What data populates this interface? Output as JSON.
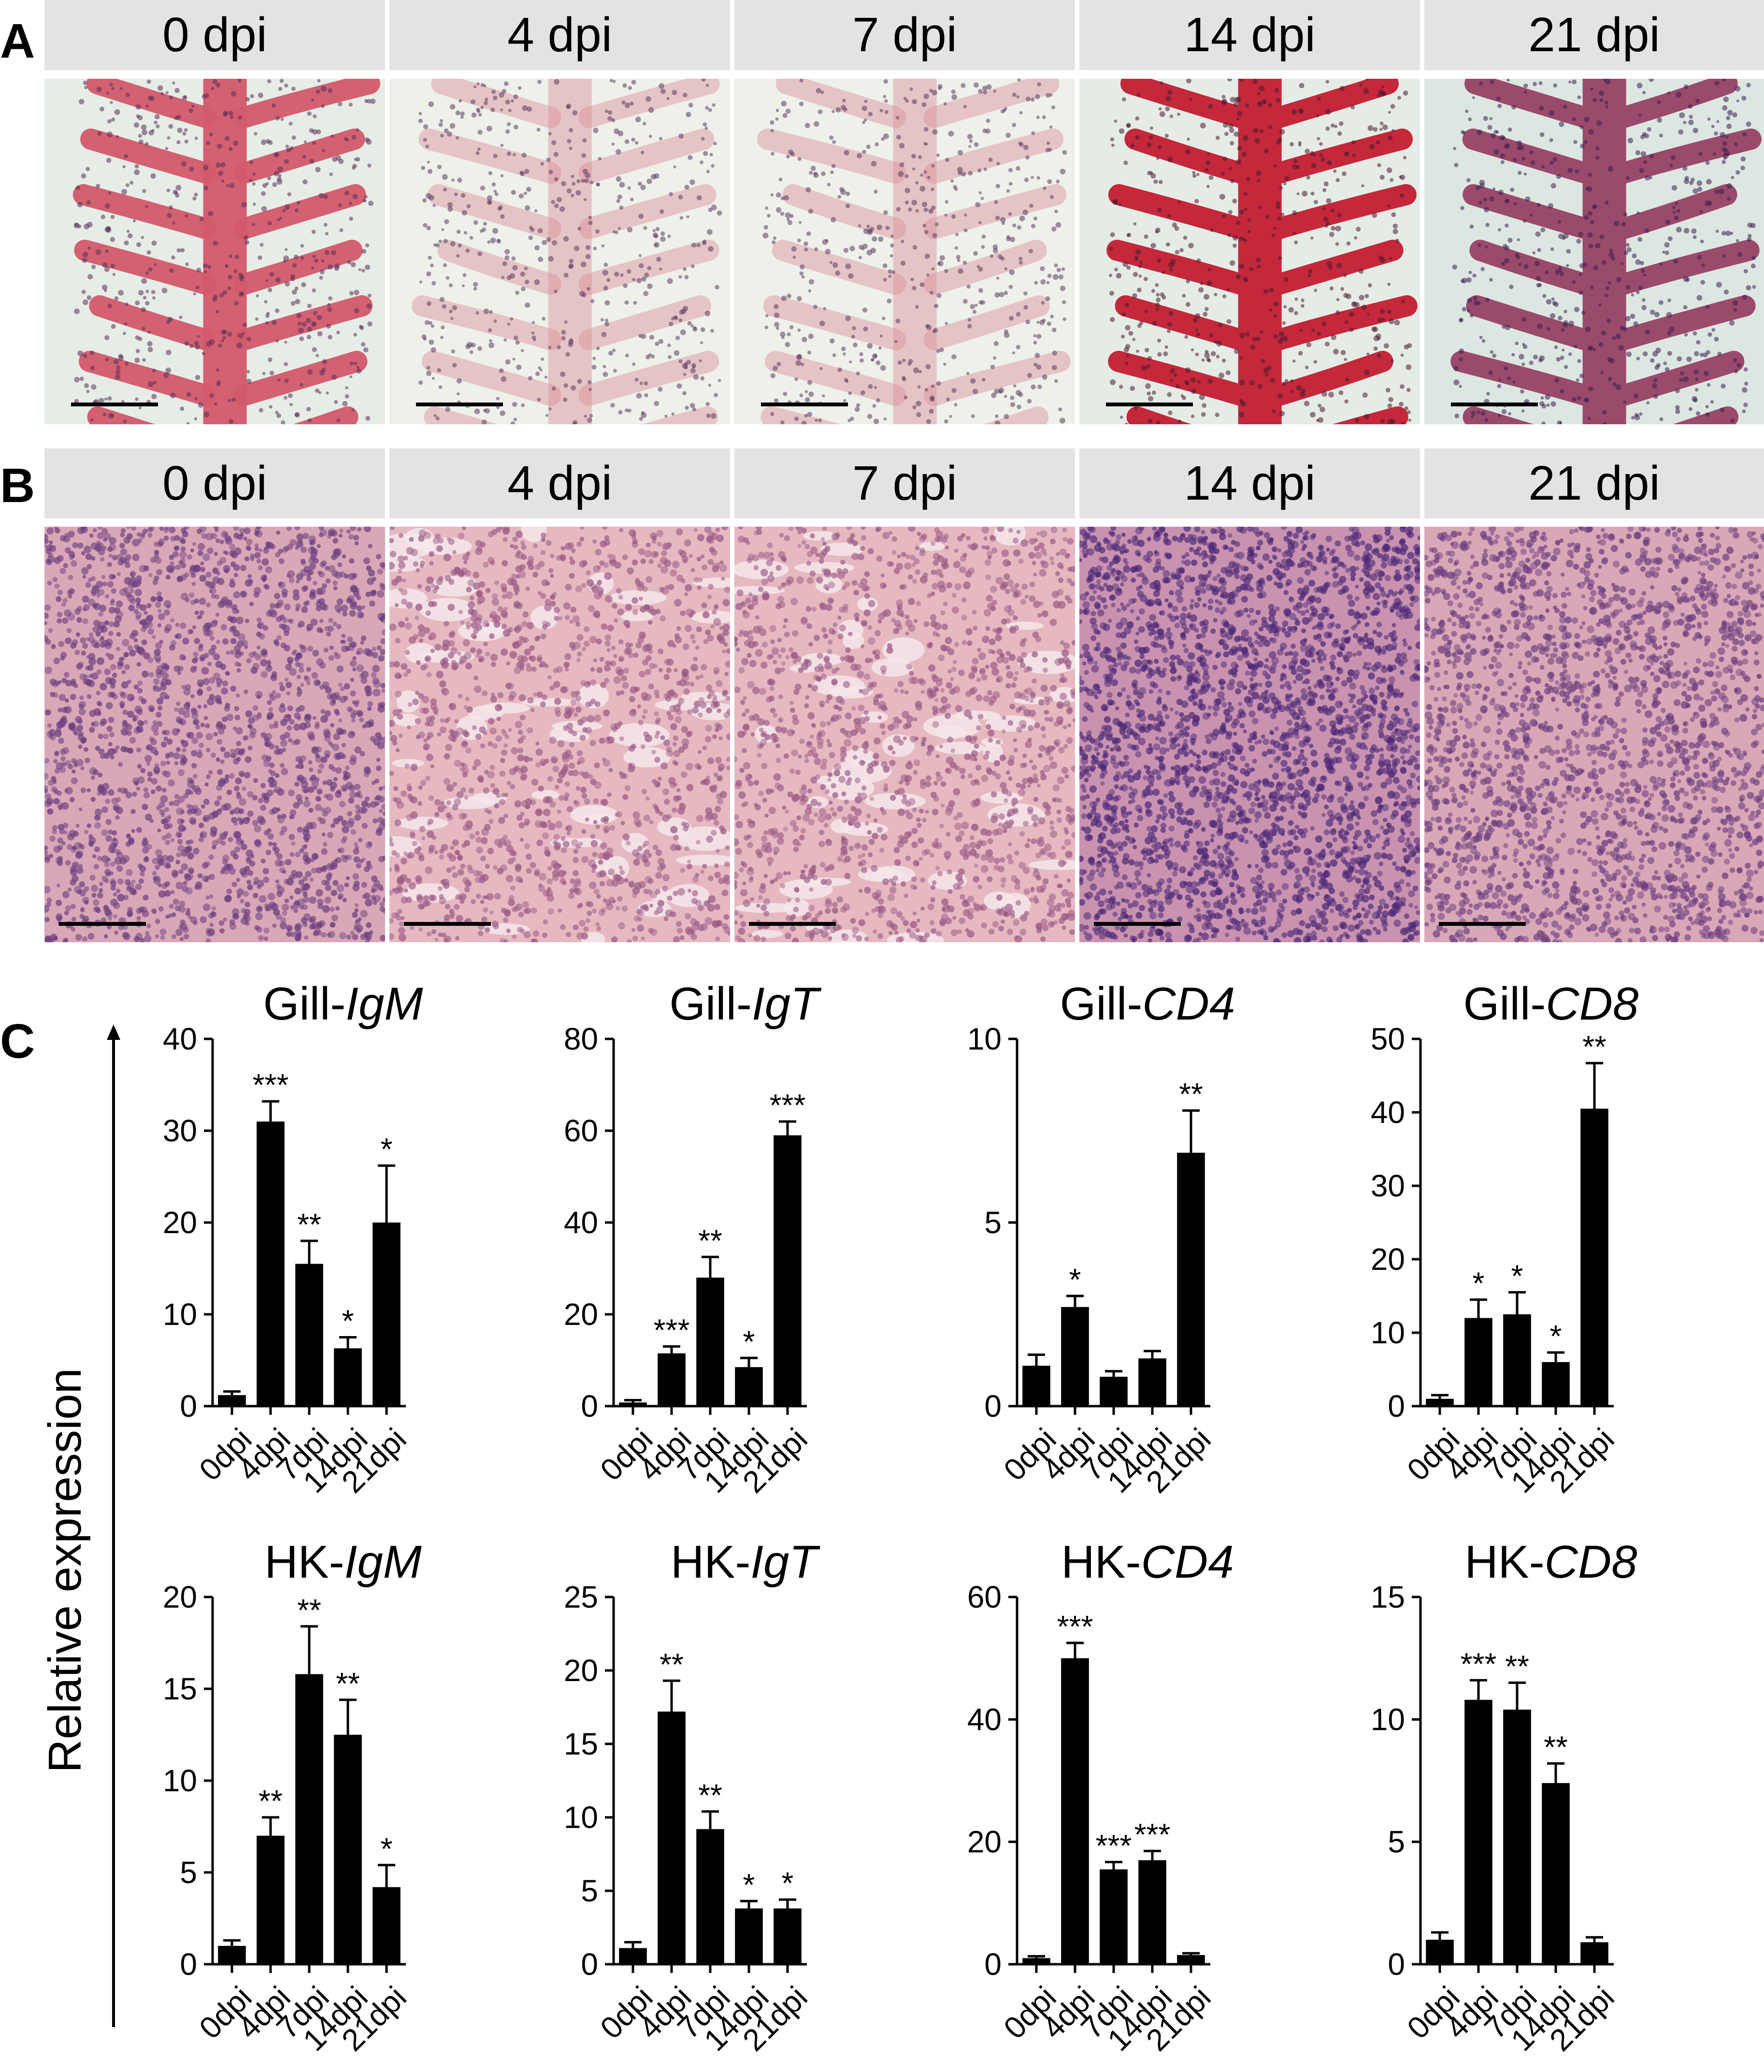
{
  "panels": {
    "a_label": "A",
    "b_label": "B",
    "c_label": "C"
  },
  "timepoints": [
    "0 dpi",
    "4 dpi",
    "7 dpi",
    "14 dpi",
    "21 dpi"
  ],
  "panel_a_images": [
    {
      "stain": "H&E",
      "tone": "normal"
    },
    {
      "stain": "H&E",
      "tone": "pale"
    },
    {
      "stain": "H&E",
      "tone": "pale"
    },
    {
      "stain": "H&E",
      "tone": "intense"
    },
    {
      "stain": "H&E",
      "tone": "dark"
    }
  ],
  "panel_b_images": [
    {
      "stain": "H&E",
      "tone": "normal"
    },
    {
      "stain": "H&E",
      "tone": "pale"
    },
    {
      "stain": "H&E",
      "tone": "pale"
    },
    {
      "stain": "H&E",
      "tone": "dark"
    },
    {
      "stain": "H&E",
      "tone": "normal"
    }
  ],
  "colors": {
    "header_bg": "#e3e3e3",
    "bar": "#000000",
    "gill_bg": "#dfeae4",
    "gill_tissue": "#c94a5c",
    "hk_bg": "#d8a7b4",
    "hk_dots": "#6a3f7a"
  },
  "y_axis_label": "Relative expression",
  "chart_data": [
    {
      "type": "bar",
      "title_prefix": "Gill-",
      "title_gene": "IgM",
      "categories": [
        "0dpi",
        "4dpi",
        "7dpi",
        "14dpi",
        "21dpi"
      ],
      "values": [
        1.2,
        31,
        15.5,
        6.3,
        20
      ],
      "errors": [
        0.4,
        2.2,
        2.5,
        1.2,
        6.2
      ],
      "significance": [
        "",
        "***",
        "**",
        "*",
        "*"
      ],
      "ylim": [
        0,
        40
      ],
      "yticks": [
        0,
        10,
        20,
        30,
        40
      ]
    },
    {
      "type": "bar",
      "title_prefix": "Gill-",
      "title_gene": "IgT",
      "categories": [
        "0dpi",
        "4dpi",
        "7dpi",
        "14dpi",
        "21dpi"
      ],
      "values": [
        0.8,
        11.5,
        28,
        8.5,
        59
      ],
      "errors": [
        0.5,
        1.5,
        4.5,
        2.0,
        3.0
      ],
      "significance": [
        "",
        "***",
        "**",
        "*",
        "***"
      ],
      "ylim": [
        0,
        80
      ],
      "yticks": [
        0,
        20,
        40,
        60,
        80
      ]
    },
    {
      "type": "bar",
      "title_prefix": "Gill-",
      "title_gene": "CD4",
      "categories": [
        "0dpi",
        "4dpi",
        "7dpi",
        "14dpi",
        "21dpi"
      ],
      "values": [
        1.1,
        2.7,
        0.8,
        1.3,
        6.9
      ],
      "errors": [
        0.3,
        0.3,
        0.15,
        0.2,
        1.15
      ],
      "significance": [
        "",
        "*",
        "",
        "",
        "**"
      ],
      "ylim": [
        0,
        10
      ],
      "yticks": [
        0,
        5,
        10
      ]
    },
    {
      "type": "bar",
      "title_prefix": "Gill-",
      "title_gene": "CD8",
      "categories": [
        "0dpi",
        "4dpi",
        "7dpi",
        "14dpi",
        "21dpi"
      ],
      "values": [
        1,
        12,
        12.5,
        6,
        40.5
      ],
      "errors": [
        0.5,
        2.5,
        3.0,
        1.3,
        6.2
      ],
      "significance": [
        "",
        "*",
        "*",
        "*",
        "**"
      ],
      "ylim": [
        0,
        50
      ],
      "yticks": [
        0,
        10,
        20,
        30,
        40,
        50
      ]
    },
    {
      "type": "bar",
      "title_prefix": "HK-",
      "title_gene": "IgM",
      "categories": [
        "0dpi",
        "4dpi",
        "7dpi",
        "14dpi",
        "21dpi"
      ],
      "values": [
        1.0,
        7.0,
        15.8,
        12.5,
        4.2
      ],
      "errors": [
        0.3,
        1.0,
        2.6,
        1.9,
        1.2
      ],
      "significance": [
        "",
        "**",
        "**",
        "**",
        "*"
      ],
      "ylim": [
        0,
        20
      ],
      "yticks": [
        0,
        5,
        10,
        15,
        20
      ]
    },
    {
      "type": "bar",
      "title_prefix": "HK-",
      "title_gene": "IgT",
      "categories": [
        "0dpi",
        "4dpi",
        "7dpi",
        "14dpi",
        "21dpi"
      ],
      "values": [
        1.1,
        17.2,
        9.2,
        3.8,
        3.8
      ],
      "errors": [
        0.4,
        2.1,
        1.2,
        0.5,
        0.6
      ],
      "significance": [
        "",
        "**",
        "**",
        "*",
        "*"
      ],
      "ylim": [
        0,
        25
      ],
      "yticks": [
        0,
        5,
        10,
        15,
        20,
        25
      ]
    },
    {
      "type": "bar",
      "title_prefix": "HK-",
      "title_gene": "CD4",
      "categories": [
        "0dpi",
        "4dpi",
        "7dpi",
        "14dpi",
        "21dpi"
      ],
      "values": [
        1.0,
        50,
        15.5,
        17,
        1.5
      ],
      "errors": [
        0.3,
        2.5,
        1.2,
        1.5,
        0.3
      ],
      "significance": [
        "",
        "***",
        "***",
        "***",
        ""
      ],
      "ylim": [
        0,
        60
      ],
      "yticks": [
        0,
        20,
        40,
        60
      ]
    },
    {
      "type": "bar",
      "title_prefix": "HK-",
      "title_gene": "CD8",
      "categories": [
        "0dpi",
        "4dpi",
        "7dpi",
        "14dpi",
        "21dpi"
      ],
      "values": [
        1.0,
        10.8,
        10.4,
        7.4,
        0.9
      ],
      "errors": [
        0.3,
        0.8,
        1.1,
        0.8,
        0.2
      ],
      "significance": [
        "",
        "***",
        "**",
        "**",
        ""
      ],
      "ylim": [
        0,
        15
      ],
      "yticks": [
        0,
        5,
        10,
        15
      ]
    }
  ]
}
